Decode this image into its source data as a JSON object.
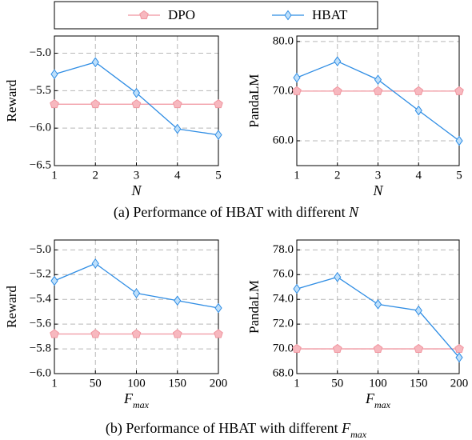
{
  "chart_data": [
    {
      "type": "line",
      "x": [
        1,
        2,
        3,
        4,
        5
      ],
      "xlim": [
        1,
        5
      ],
      "xticks": [
        1,
        2,
        3,
        4,
        5
      ],
      "ylim": [
        -6.5,
        -4.77
      ],
      "yticks": [
        {
          "value": -6.5,
          "label": "−6.5"
        },
        {
          "value": -6.0,
          "label": "−6.0"
        },
        {
          "value": -5.5,
          "label": "−5.5"
        },
        {
          "value": -5.0,
          "label": "−5.0"
        }
      ],
      "ylabel": "Reward",
      "xlabel": "N",
      "grid": true,
      "series": [
        {
          "name": "DPO",
          "color": "#f0959f",
          "marker": "pentagon",
          "values": [
            -5.68,
            -5.68,
            -5.68,
            -5.68,
            -5.68
          ]
        },
        {
          "name": "HBAT",
          "color": "#2f8de4",
          "marker": "diamond",
          "values": [
            -5.28,
            -5.12,
            -5.53,
            -6.01,
            -6.09
          ]
        }
      ]
    },
    {
      "type": "line",
      "x": [
        1,
        2,
        3,
        4,
        5
      ],
      "xlim": [
        1,
        5
      ],
      "xticks": [
        1,
        2,
        3,
        4,
        5
      ],
      "ylim": [
        55,
        81.1
      ],
      "yticks": [
        {
          "value": 60,
          "label": "60.0"
        },
        {
          "value": 70,
          "label": "70.0"
        },
        {
          "value": 80,
          "label": "80.0"
        }
      ],
      "ylabel": "PandaLM",
      "xlabel": "N",
      "grid": true,
      "series": [
        {
          "color": "#f0959f",
          "marker": "pentagon",
          "values": [
            70,
            70,
            70,
            70,
            70
          ]
        },
        {
          "color": "#2f8de4",
          "marker": "diamond",
          "values": [
            72.7,
            76.0,
            72.3,
            66.1,
            60.0
          ]
        }
      ]
    },
    {
      "type": "line",
      "categories": [
        "1",
        "50",
        "100",
        "150",
        "200"
      ],
      "ylim": [
        -6.0,
        -4.92
      ],
      "yticks": [
        {
          "value": -6.0,
          "label": "−6.0"
        },
        {
          "value": -5.8,
          "label": "−5.8"
        },
        {
          "value": -5.6,
          "label": "−5.6"
        },
        {
          "value": -5.4,
          "label": "−5.4"
        },
        {
          "value": -5.2,
          "label": "−5.2"
        },
        {
          "value": -5.0,
          "label": "−5.0"
        }
      ],
      "ylabel": "Reward",
      "xlabel": "F",
      "xlabel_sub": "max",
      "grid": true,
      "series": [
        {
          "color": "#f0959f",
          "marker": "pentagon",
          "values": [
            -5.68,
            -5.68,
            -5.68,
            -5.68,
            -5.68
          ]
        },
        {
          "color": "#2f8de4",
          "marker": "diamond",
          "values": [
            -5.25,
            -5.11,
            -5.35,
            -5.41,
            -5.47
          ]
        }
      ]
    },
    {
      "type": "line",
      "categories": [
        "1",
        "50",
        "100",
        "150",
        "200"
      ],
      "ylim": [
        68,
        78.8
      ],
      "yticks": [
        {
          "value": 68,
          "label": "68.0"
        },
        {
          "value": 70,
          "label": "70.0"
        },
        {
          "value": 72,
          "label": "72.0"
        },
        {
          "value": 74,
          "label": "74.0"
        },
        {
          "value": 76,
          "label": "76.0"
        },
        {
          "value": 78,
          "label": "78.0"
        }
      ],
      "ylabel": "PandaLM",
      "xlabel": "F",
      "xlabel_sub": "max",
      "grid": true,
      "series": [
        {
          "color": "#f0959f",
          "marker": "pentagon",
          "values": [
            70,
            70,
            70,
            70,
            70
          ]
        },
        {
          "color": "#2f8de4",
          "marker": "diamond",
          "values": [
            74.85,
            75.8,
            73.6,
            73.1,
            69.3
          ]
        }
      ]
    }
  ],
  "captions": [
    {
      "text": "(a) Performance of HBAT with different ",
      "var": "N"
    },
    {
      "text": "(b) Performance of HBAT with different ",
      "var": "F",
      "sub": "max"
    }
  ]
}
